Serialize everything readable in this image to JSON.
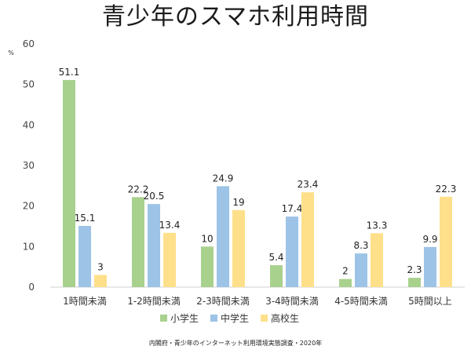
{
  "chart_data": {
    "type": "bar",
    "title": "青少年のスマホ利用時間",
    "ylabel": "%",
    "xlabel": "",
    "ylim": [
      0,
      60
    ],
    "yticks": [
      0,
      10,
      20,
      30,
      40,
      50,
      60
    ],
    "grid": false,
    "legend_position": "bottom",
    "categories": [
      "1時間未満",
      "1-2時間未満",
      "2-3時間未満",
      "3-4時間未満",
      "4-5時間未満",
      "5時間以上"
    ],
    "series": [
      {
        "name": "小学生",
        "color": "#a9d18e",
        "values": [
          51.1,
          22.2,
          10,
          5.4,
          2,
          2.3
        ]
      },
      {
        "name": "中学生",
        "color": "#9dc3e6",
        "values": [
          15.1,
          20.5,
          24.9,
          17.4,
          8.3,
          9.9
        ]
      },
      {
        "name": "高校生",
        "color": "#ffe08a",
        "values": [
          3,
          13.4,
          19,
          23.4,
          13.3,
          22.3
        ]
      }
    ],
    "source": "内閣府・青少年のインターネット利用環境実態調査・2020年"
  }
}
